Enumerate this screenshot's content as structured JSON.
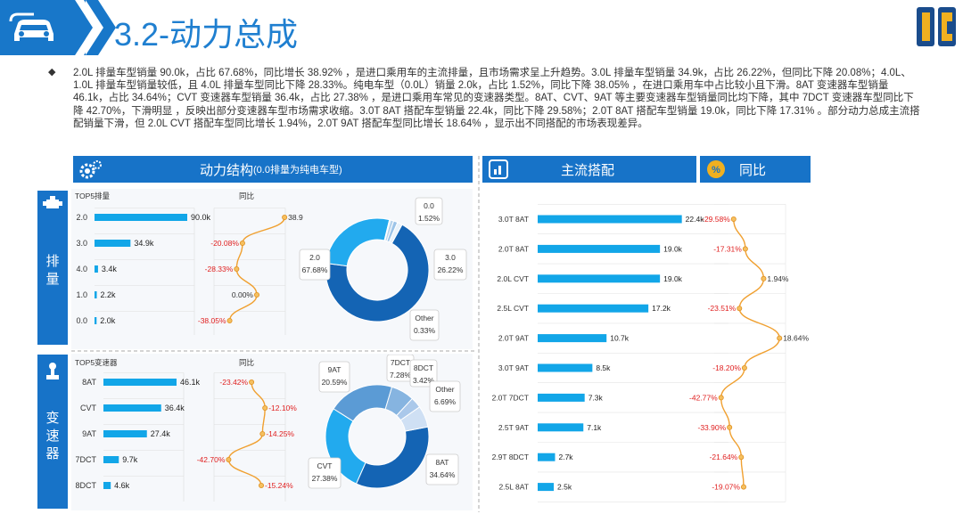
{
  "header": {
    "title": "3.2-动力总成"
  },
  "summary": "2.0L 排量车型销量 90.0k，占比 67.68%，同比增长 38.92% ，是进口乘用车的主流排量，且市场需求呈上升趋势。3.0L 排量车型销量 34.9k，占比 26.22%，但同比下降 20.08%；4.0L、1.0L 排量车型销量较低，且 4.0L 排量车型同比下降 28.33%。纯电车型（0.0L）销量 2.0k，占比 1.52%，同比下降 38.05% ，在进口乘用车中占比较小且下滑。8AT 变速器车型销量 46.1k，占比 34.64%；CVT 变速器车型销量 36.4k，占比 27.38% ，是进口乘用车常见的变速器类型。8AT、CVT、9AT 等主要变速器车型销量同比均下降，其中 7DCT 变速器车型同比下降 42.70%，下滑明显 ，反映出部分变速器车型市场需求收缩。3.0T 8AT 搭配车型销量 22.4k，同比下降 29.58%；2.0T 8AT 搭配车型销量 19.0k，同比下降 17.31% 。部分动力总成主流搭配销量下滑，但 2.0L CVT 搭配车型同比增长 1.94%，2.0T 9AT 搭配车型同比增长 18.64% ，显示出不同搭配的市场表现差异。",
  "bands": {
    "structure": "动力结构",
    "structure_note": "(0.0排量为纯电车型)",
    "mainstream": "主流搭配",
    "yoy": "同比"
  },
  "side": {
    "displacement": [
      "排",
      "量"
    ],
    "transmission": [
      "变",
      "速",
      "器"
    ]
  },
  "colors": {
    "accent": "#1773c8",
    "bar": "#12a6e8",
    "line": "#f0a030",
    "negative": "#e02020"
  },
  "chart_data": [
    {
      "type": "bar",
      "title": "TOP5排量",
      "yoy_title": "同比",
      "categories": [
        "2.0",
        "3.0",
        "4.0",
        "1.0",
        "0.0"
      ],
      "values": [
        90.0,
        34.9,
        3.4,
        2.2,
        2.0
      ],
      "value_labels": [
        "90.0k",
        "34.9k",
        "3.4k",
        "2.2k",
        "2.0k"
      ],
      "yoy": [
        38.92,
        -20.08,
        -28.33,
        0.0,
        -38.05
      ],
      "yoy_labels": [
        "38.92%",
        "-20.08%",
        "-28.33%",
        "0.00%",
        "-38.05%"
      ]
    },
    {
      "type": "pie",
      "slices": [
        {
          "name": "2.0",
          "label": "67.68%",
          "value": 67.68
        },
        {
          "name": "3.0",
          "label": "26.22%",
          "value": 26.22
        },
        {
          "name": "Other",
          "label": "0.33%",
          "value": 0.33
        },
        {
          "name": "1.0",
          "label": "",
          "value": 1.0
        },
        {
          "name": "4.0",
          "label": "",
          "value": 1.25
        },
        {
          "name": "0.0",
          "label": "1.52%",
          "value": 1.52
        }
      ]
    },
    {
      "type": "bar",
      "title": "TOP5变速器",
      "yoy_title": "同比",
      "categories": [
        "8AT",
        "CVT",
        "9AT",
        "7DCT",
        "8DCT"
      ],
      "values": [
        46.1,
        36.4,
        27.4,
        9.7,
        4.6
      ],
      "value_labels": [
        "46.1k",
        "36.4k",
        "27.4k",
        "9.7k",
        "4.6k"
      ],
      "yoy": [
        -23.42,
        -12.1,
        -14.25,
        -42.7,
        -15.24
      ],
      "yoy_labels": [
        "-23.42%",
        "-12.10%",
        "-14.25%",
        "-42.70%",
        "-15.24%"
      ]
    },
    {
      "type": "pie",
      "slices": [
        {
          "name": "8AT",
          "label": "34.64%",
          "value": 34.64
        },
        {
          "name": "CVT",
          "label": "27.38%",
          "value": 27.38
        },
        {
          "name": "9AT",
          "label": "20.59%",
          "value": 20.59
        },
        {
          "name": "7DCT",
          "label": "7.28%",
          "value": 7.28
        },
        {
          "name": "8DCT",
          "label": "3.42%",
          "value": 3.42
        },
        {
          "name": "Other",
          "label": "6.69%",
          "value": 6.69
        }
      ]
    },
    {
      "type": "bar",
      "categories": [
        "3.0T 8AT",
        "2.0T 8AT",
        "2.0L CVT",
        "2.5L CVT",
        "2.0T 9AT",
        "3.0T 9AT",
        "2.0T 7DCT",
        "2.5T 9AT",
        "2.9T 8DCT",
        "2.5L 8AT"
      ],
      "values": [
        22.4,
        19.0,
        19.0,
        17.2,
        10.7,
        8.5,
        7.3,
        7.1,
        2.7,
        2.5
      ],
      "value_labels": [
        "22.4k",
        "19.0k",
        "19.0k",
        "17.2k",
        "10.7k",
        "8.5k",
        "7.3k",
        "7.1k",
        "2.7k",
        "2.5k"
      ],
      "yoy": [
        -29.58,
        -17.31,
        1.94,
        -23.51,
        18.64,
        -18.2,
        -42.77,
        -33.9,
        -21.64,
        -19.07
      ],
      "yoy_labels": [
        "-29.58%",
        "-17.31%",
        "1.94%",
        "-23.51%",
        "18.64%",
        "-18.20%",
        "-42.77%",
        "-33.90%",
        "-21.64%",
        "-19.07%"
      ]
    }
  ]
}
